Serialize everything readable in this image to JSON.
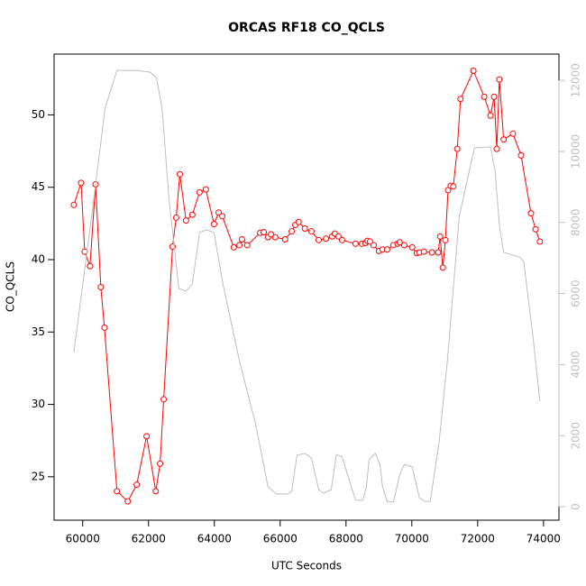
{
  "chart_data": {
    "type": "line",
    "title": "ORCAS RF18 CO_QCLS",
    "x_label": "UTC Seconds",
    "y_label": "CO_QCLS",
    "xlim": [
      59130,
      74470
    ],
    "xticks": [
      60000,
      62000,
      64000,
      66000,
      68000,
      70000,
      72000,
      74000
    ],
    "ylim": [
      22.0,
      54.2
    ],
    "yticks": [
      25,
      30,
      35,
      40,
      45,
      50
    ],
    "y2lim": [
      -380,
      12740
    ],
    "y2ticks": [
      0,
      2000,
      4000,
      6000,
      8000,
      10000,
      12000
    ],
    "y2_color": "#bebebe",
    "series": [
      {
        "color": "#ff0000",
        "marker": "circle",
        "x": [
          59730,
          59950,
          60060,
          60220,
          60390,
          60550,
          60660,
          61040,
          61370,
          61640,
          61940,
          62220,
          62350,
          62460,
          62730,
          62840,
          62950,
          63140,
          63330,
          63550,
          63740,
          63990,
          64130,
          64240,
          64590,
          64760,
          64840,
          65000,
          65390,
          65500,
          65630,
          65720,
          65850,
          66150,
          66350,
          66460,
          66560,
          66750,
          66950,
          67170,
          67390,
          67580,
          67660,
          67770,
          67880,
          68290,
          68480,
          68590,
          68650,
          68730,
          68840,
          69000,
          69110,
          69250,
          69440,
          69570,
          69630,
          69770,
          70010,
          70150,
          70230,
          70370,
          70610,
          70800,
          70860,
          70940,
          71020,
          71100,
          71180,
          71260,
          71380,
          71480,
          71870,
          72200,
          72390,
          72500,
          72580,
          72660,
          72790,
          73070,
          73320,
          73620,
          73760,
          73890
        ],
        "values": [
          43.78,
          45.3,
          40.55,
          39.55,
          45.2,
          38.1,
          35.3,
          24.0,
          23.3,
          24.45,
          27.8,
          24.0,
          25.9,
          30.35,
          40.9,
          42.9,
          45.9,
          42.7,
          43.1,
          44.65,
          44.85,
          42.45,
          43.25,
          43.0,
          40.85,
          41.0,
          41.4,
          41.0,
          41.85,
          41.9,
          41.55,
          41.75,
          41.55,
          41.4,
          41.95,
          42.4,
          42.6,
          42.15,
          41.95,
          41.35,
          41.45,
          41.6,
          41.8,
          41.6,
          41.35,
          41.1,
          41.1,
          41.15,
          41.3,
          41.25,
          41.0,
          40.6,
          40.7,
          40.7,
          41.0,
          41.1,
          41.2,
          41.0,
          40.85,
          40.45,
          40.5,
          40.55,
          40.5,
          40.5,
          41.6,
          39.45,
          41.35,
          44.8,
          45.1,
          45.05,
          47.65,
          51.1,
          53.05,
          51.25,
          49.95,
          51.25,
          47.65,
          52.45,
          48.3,
          48.7,
          47.2,
          43.2,
          42.1,
          41.25
        ]
      },
      {
        "color": "#bebebe",
        "axis": "y2",
        "x": [
          59730,
          60270,
          60680,
          61040,
          61640,
          62050,
          62240,
          62410,
          62620,
          62920,
          63140,
          63330,
          63550,
          63770,
          63990,
          64260,
          64760,
          65250,
          65630,
          65880,
          66230,
          66350,
          66510,
          66750,
          66950,
          67170,
          67330,
          67550,
          67710,
          67880,
          68290,
          68510,
          68620,
          68700,
          68890,
          69030,
          69110,
          69250,
          69440,
          69630,
          69770,
          70010,
          70230,
          70400,
          70560,
          70830,
          71080,
          71440,
          71900,
          72390,
          72530,
          72660,
          72790,
          73260,
          73400,
          73670,
          73890
        ],
        "values": [
          4340,
          8170,
          11220,
          12280,
          12280,
          12230,
          12080,
          11220,
          8680,
          6140,
          6070,
          6270,
          7720,
          7790,
          7720,
          6270,
          4110,
          2340,
          560,
          360,
          360,
          430,
          1450,
          1500,
          1370,
          480,
          380,
          480,
          1470,
          1400,
          180,
          180,
          560,
          1320,
          1500,
          1190,
          560,
          150,
          130,
          890,
          1190,
          1120,
          250,
          150,
          150,
          1830,
          4110,
          8170,
          10100,
          10130,
          9440,
          7920,
          7160,
          7030,
          6900,
          4870,
          2970
        ]
      }
    ]
  }
}
